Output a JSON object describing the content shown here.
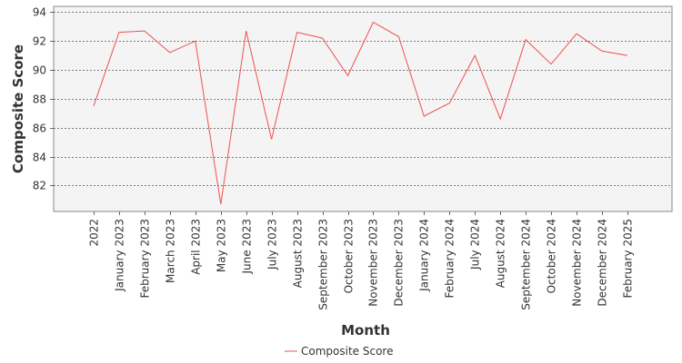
{
  "chart_data": {
    "type": "line",
    "title": "",
    "xlabel": "Month",
    "ylabel": "Composite Score",
    "categories": [
      "2022",
      "January 2023",
      "February 2023",
      "March 2023",
      "April 2023",
      "May 2023",
      "June 2023",
      "July 2023",
      "August 2023",
      "September 2023",
      "October 2023",
      "November 2023",
      "December 2023",
      "January 2024",
      "February 2024",
      "July 2024",
      "August 2024",
      "September 2024",
      "October 2024",
      "November 2024",
      "December 2024",
      "February 2025"
    ],
    "series": [
      {
        "name": "Composite Score",
        "color": "#f05050",
        "values": [
          87.5,
          92.6,
          92.7,
          91.2,
          92.0,
          80.7,
          92.7,
          85.2,
          92.6,
          92.2,
          89.6,
          93.3,
          92.3,
          86.8,
          87.7,
          91.0,
          86.6,
          92.1,
          90.4,
          92.5,
          91.3,
          91.0
        ]
      }
    ],
    "ylim": [
      80.2,
      94.4
    ],
    "yticks": [
      82,
      84,
      86,
      88,
      90,
      92,
      94
    ],
    "grid": "horizontal dashed",
    "legend": "bottom-center",
    "plot_background": "#f4f4f4"
  }
}
